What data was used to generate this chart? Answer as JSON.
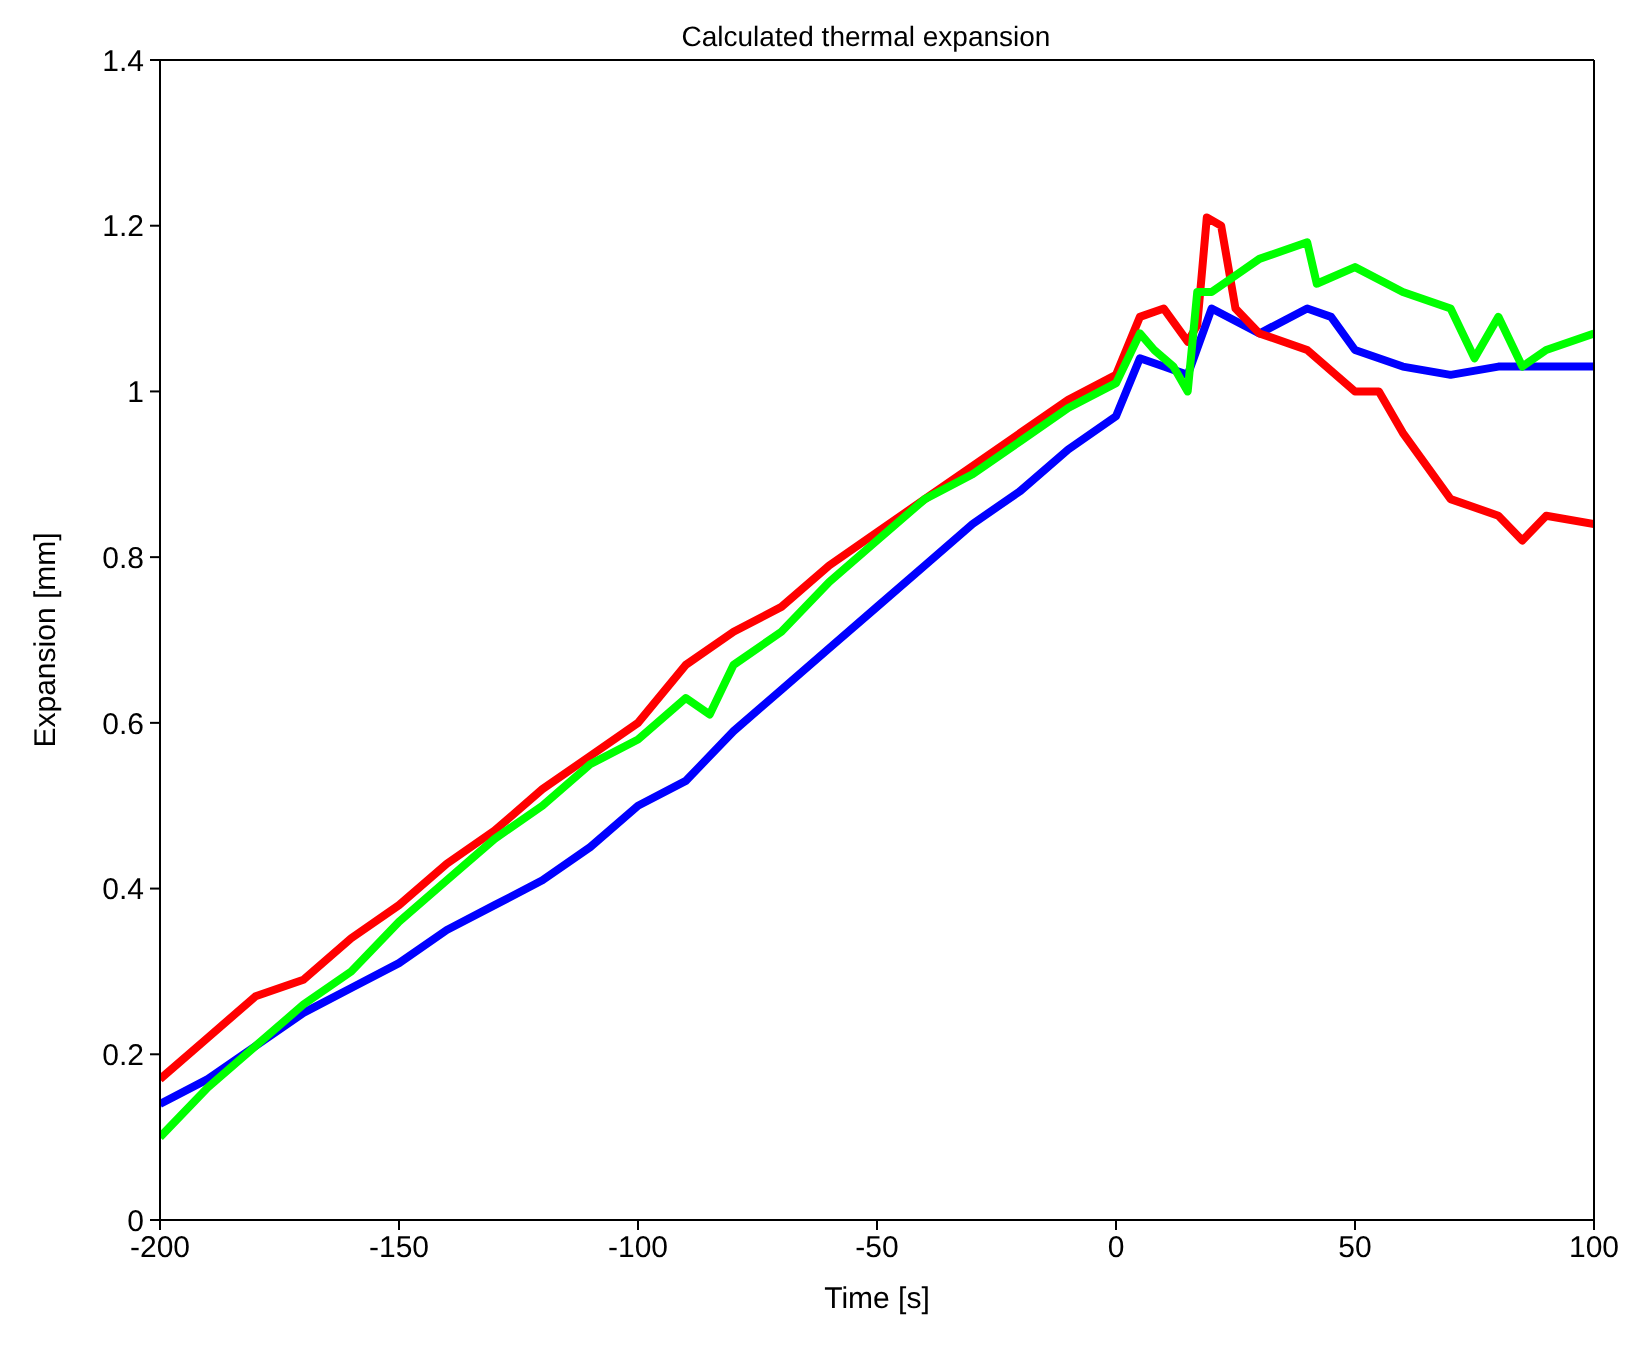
{
  "chart_data": {
    "type": "line",
    "title": "Calculated thermal expansion",
    "xlabel": "Time [s]",
    "ylabel": "Expansion [mm]",
    "xlim": [
      -200,
      100
    ],
    "xticks": [
      -200,
      -150,
      -100,
      -50,
      0,
      50,
      100
    ],
    "ylim": [
      0,
      1.4
    ],
    "yticks": [
      0,
      0.2,
      0.4,
      0.6,
      0.8,
      1,
      1.2,
      1.4
    ],
    "grid": false,
    "marker": "none",
    "line_style": "solid",
    "series": [
      {
        "color": "#0000ff",
        "x": [
          -200,
          -190,
          -180,
          -170,
          -160,
          -150,
          -140,
          -130,
          -120,
          -110,
          -100,
          -90,
          -80,
          -70,
          -60,
          -50,
          -40,
          -30,
          -20,
          -10,
          0,
          5,
          10,
          15,
          20,
          30,
          40,
          45,
          50,
          60,
          70,
          80,
          90,
          100
        ],
        "values": [
          0.14,
          0.17,
          0.21,
          0.25,
          0.28,
          0.31,
          0.35,
          0.38,
          0.41,
          0.45,
          0.5,
          0.53,
          0.59,
          0.64,
          0.69,
          0.74,
          0.79,
          0.84,
          0.88,
          0.93,
          0.97,
          1.04,
          1.03,
          1.02,
          1.1,
          1.07,
          1.1,
          1.09,
          1.05,
          1.03,
          1.02,
          1.03,
          1.03,
          1.03
        ]
      },
      {
        "color": "#ff0000",
        "x": [
          -200,
          -190,
          -180,
          -170,
          -160,
          -150,
          -140,
          -130,
          -120,
          -110,
          -100,
          -90,
          -80,
          -70,
          -60,
          -50,
          -40,
          -30,
          -20,
          -10,
          0,
          5,
          10,
          15,
          17,
          19,
          22,
          25,
          30,
          40,
          50,
          55,
          60,
          70,
          80,
          85,
          90,
          100
        ],
        "values": [
          0.17,
          0.22,
          0.27,
          0.29,
          0.34,
          0.38,
          0.43,
          0.47,
          0.52,
          0.56,
          0.6,
          0.67,
          0.71,
          0.74,
          0.79,
          0.83,
          0.87,
          0.91,
          0.95,
          0.99,
          1.02,
          1.09,
          1.1,
          1.06,
          1.08,
          1.21,
          1.2,
          1.1,
          1.07,
          1.05,
          1,
          1,
          0.95,
          0.87,
          0.85,
          0.82,
          0.85,
          0.84
        ]
      },
      {
        "color": "#00ff00",
        "x": [
          -200,
          -190,
          -180,
          -170,
          -160,
          -150,
          -140,
          -130,
          -120,
          -110,
          -100,
          -90,
          -85,
          -80,
          -70,
          -60,
          -50,
          -40,
          -30,
          -20,
          -10,
          0,
          5,
          8,
          12,
          15,
          17,
          20,
          25,
          30,
          40,
          42,
          50,
          60,
          70,
          75,
          80,
          85,
          90,
          100
        ],
        "values": [
          0.1,
          0.16,
          0.21,
          0.26,
          0.3,
          0.36,
          0.41,
          0.46,
          0.5,
          0.55,
          0.58,
          0.63,
          0.61,
          0.67,
          0.71,
          0.77,
          0.82,
          0.87,
          0.9,
          0.94,
          0.98,
          1.01,
          1.07,
          1.05,
          1.03,
          1,
          1.12,
          1.12,
          1.14,
          1.16,
          1.18,
          1.13,
          1.15,
          1.12,
          1.1,
          1.04,
          1.09,
          1.03,
          1.05,
          1.07
        ]
      }
    ]
  }
}
